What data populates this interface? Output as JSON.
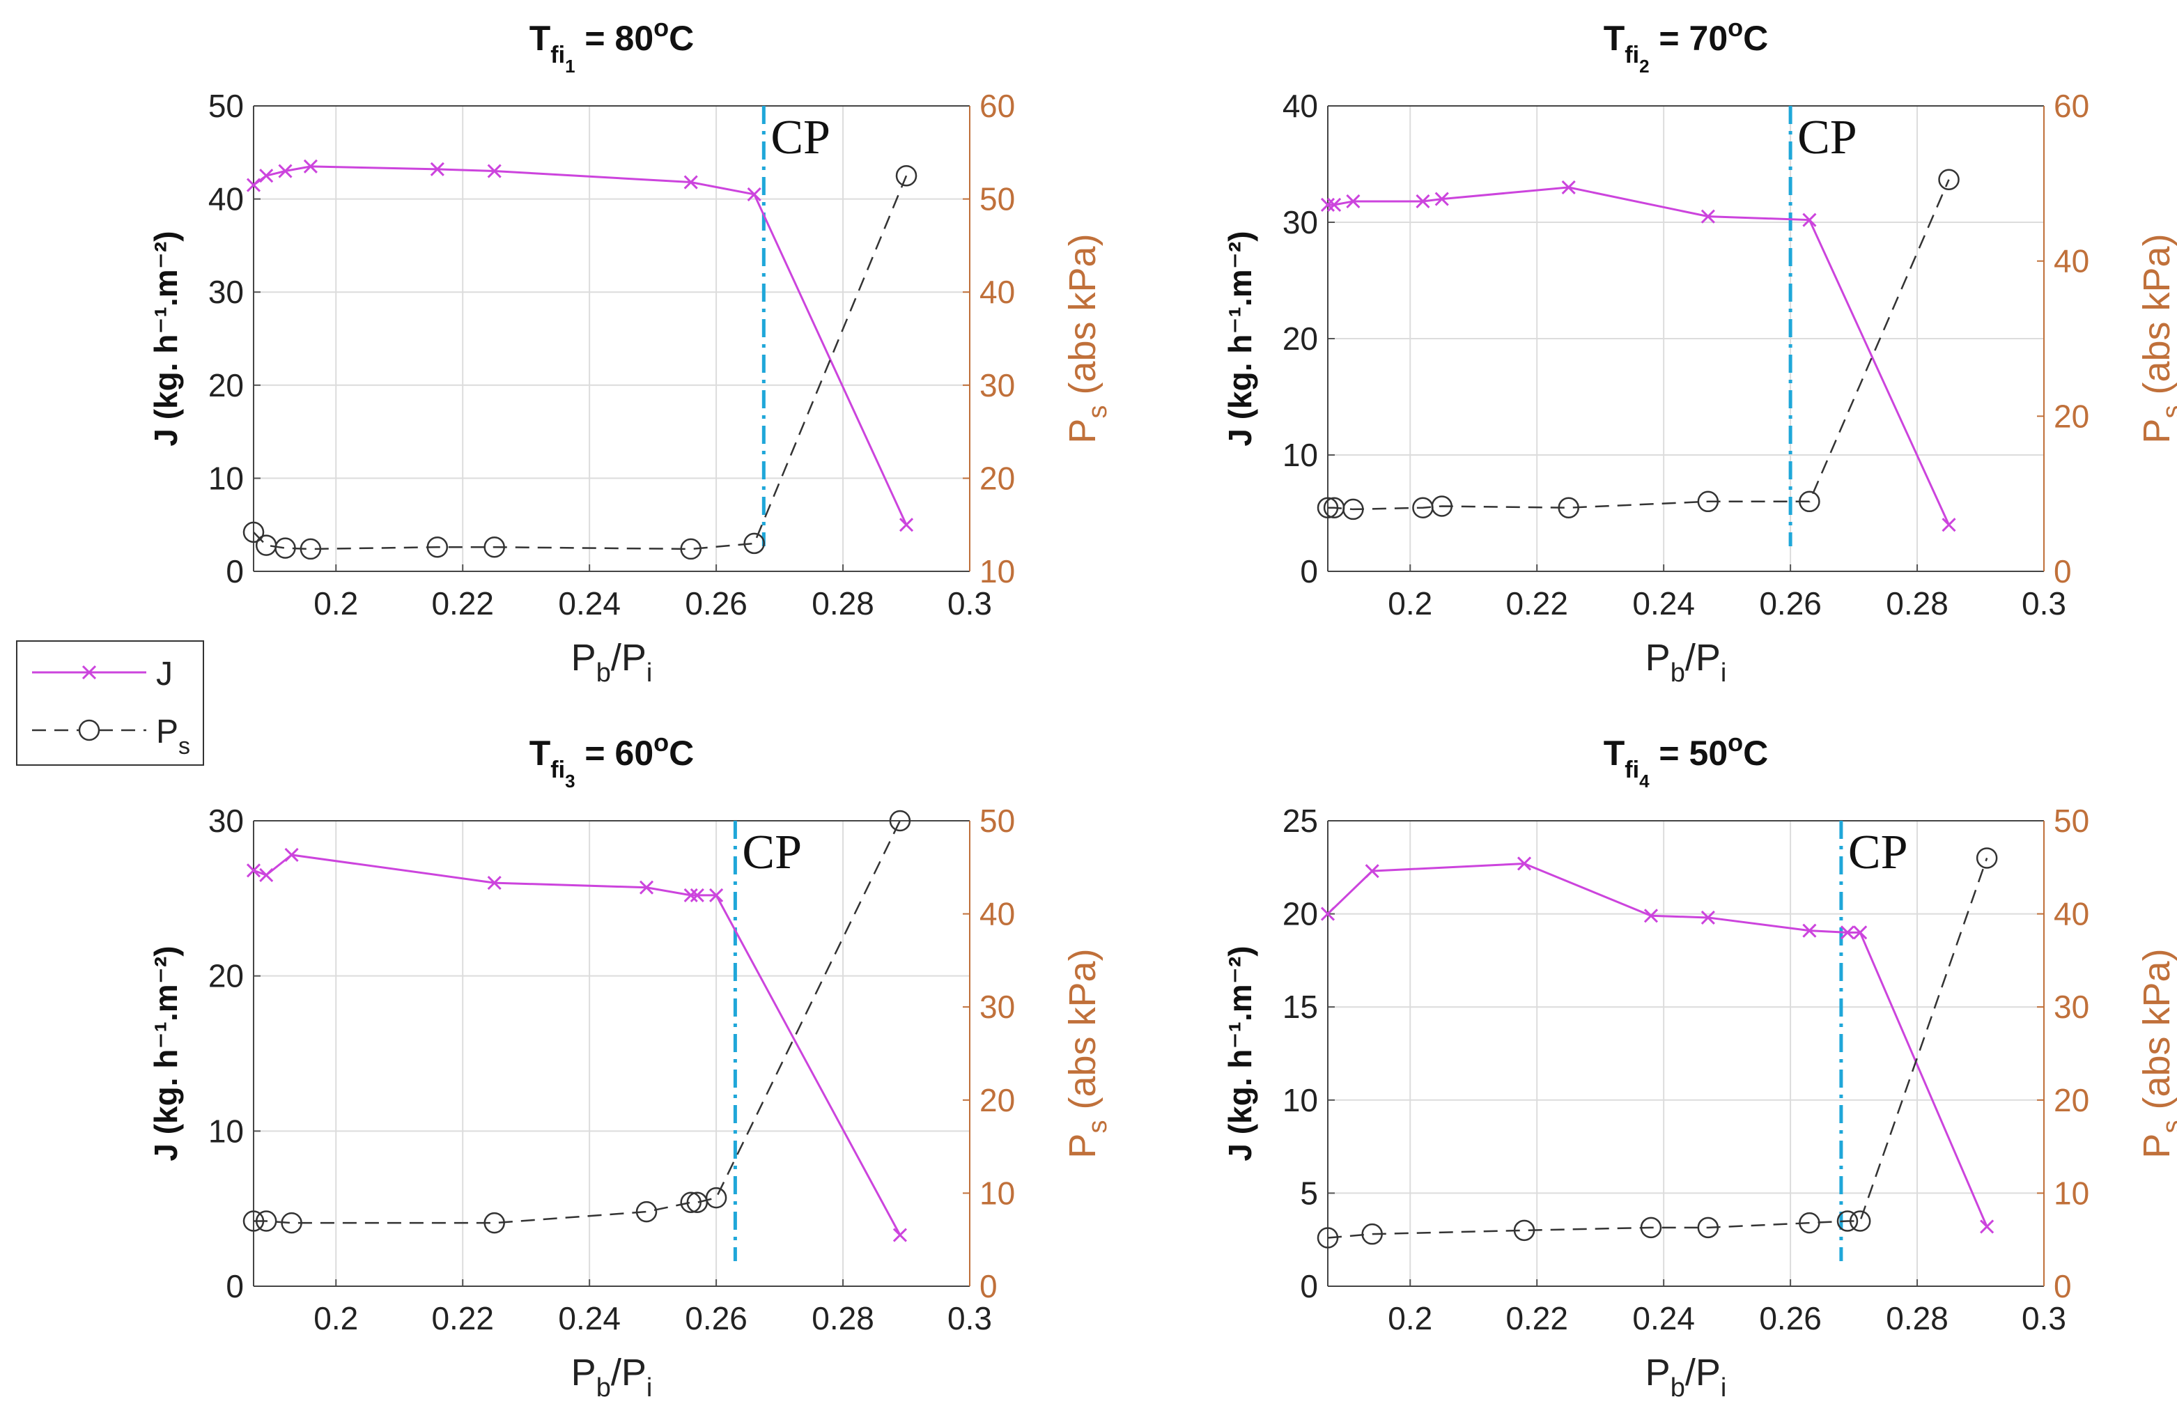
{
  "legend": {
    "items": [
      {
        "label": "J",
        "sub": "",
        "color": "#cc44dd"
      },
      {
        "label": "P",
        "sub": "s",
        "color": "#333333"
      }
    ]
  },
  "colors": {
    "j_series": "#cc44dd",
    "ps_series": "#333333",
    "cp_line": "#1fa7d9",
    "right_axis": "#c0703a",
    "grid": "#dcdcdc"
  },
  "chart_data": [
    {
      "type": "line",
      "title": {
        "prefix": "T",
        "sub": "fi",
        "subsub": "1",
        "value": " = 80",
        "sup": "o",
        "unit": "C"
      },
      "xlabel": {
        "main": "P",
        "sub1": "b",
        "sep": "/P",
        "sub2": "i"
      },
      "ylabel": "J (kg. h⁻¹.m⁻²)",
      "y2label": {
        "main": "P",
        "sub": "s",
        "rest": " (abs kPa)"
      },
      "xlim": [
        0.187,
        0.3
      ],
      "ylim": [
        0,
        50
      ],
      "y2lim": [
        10,
        60
      ],
      "xticks": [
        "0.2",
        "0.22",
        "0.24",
        "0.26",
        "0.28",
        "0.3"
      ],
      "xtick_values": [
        0.2,
        0.22,
        0.24,
        0.26,
        0.28,
        0.3
      ],
      "yticks": [
        "0",
        "10",
        "20",
        "30",
        "40",
        "50"
      ],
      "y2ticks": [
        "10",
        "20",
        "30",
        "40",
        "50",
        "60"
      ],
      "cp": {
        "x": 0.2675,
        "label": "CP"
      },
      "series": [
        {
          "name": "J",
          "axis": "left",
          "x": [
            0.187,
            0.189,
            0.192,
            0.196,
            0.216,
            0.225,
            0.256,
            0.266,
            0.29
          ],
          "values": [
            41.5,
            42.5,
            43,
            43.5,
            43.2,
            43,
            41.8,
            40.5,
            5
          ]
        },
        {
          "name": "Ps",
          "axis": "right",
          "x": [
            0.187,
            0.189,
            0.192,
            0.196,
            0.216,
            0.225,
            0.256,
            0.266,
            0.29
          ],
          "values": [
            14.2,
            12.8,
            12.5,
            12.4,
            12.6,
            12.6,
            12.4,
            13,
            52.5
          ]
        }
      ]
    },
    {
      "type": "line",
      "title": {
        "prefix": "T",
        "sub": "fi",
        "subsub": "2",
        "value": " = 70",
        "sup": "o",
        "unit": "C"
      },
      "xlabel": {
        "main": "P",
        "sub1": "b",
        "sep": "/P",
        "sub2": "i"
      },
      "ylabel": "J (kg. h⁻¹.m⁻²)",
      "y2label": {
        "main": "P",
        "sub": "s",
        "rest": " (abs kPa)"
      },
      "xlim": [
        0.187,
        0.3
      ],
      "ylim": [
        0,
        40
      ],
      "y2lim": [
        0,
        60
      ],
      "xticks": [
        "0.2",
        "0.22",
        "0.24",
        "0.26",
        "0.28",
        "0.3"
      ],
      "xtick_values": [
        0.2,
        0.22,
        0.24,
        0.26,
        0.28,
        0.3
      ],
      "yticks": [
        "0",
        "10",
        "20",
        "30",
        "40"
      ],
      "y2ticks": [
        "0",
        "20",
        "40",
        "60"
      ],
      "cp": {
        "x": 0.26,
        "label": "CP"
      },
      "series": [
        {
          "name": "J",
          "axis": "left",
          "x": [
            0.187,
            0.188,
            0.191,
            0.202,
            0.205,
            0.225,
            0.247,
            0.263,
            0.285
          ],
          "values": [
            31.5,
            31.5,
            31.8,
            31.8,
            32,
            33,
            30.5,
            30.2,
            4
          ]
        },
        {
          "name": "Ps",
          "axis": "right",
          "x": [
            0.187,
            0.188,
            0.191,
            0.202,
            0.205,
            0.225,
            0.247,
            0.263,
            0.285
          ],
          "values": [
            8.2,
            8.2,
            8,
            8.2,
            8.4,
            8.2,
            9,
            9,
            50.5
          ]
        }
      ]
    },
    {
      "type": "line",
      "title": {
        "prefix": "T",
        "sub": "fi",
        "subsub": "3",
        "value": " = 60",
        "sup": "o",
        "unit": "C"
      },
      "xlabel": {
        "main": "P",
        "sub1": "b",
        "sep": "/P",
        "sub2": "i"
      },
      "ylabel": "J (kg. h⁻¹.m⁻²)",
      "y2label": {
        "main": "P",
        "sub": "s",
        "rest": " (abs kPa)"
      },
      "xlim": [
        0.187,
        0.3
      ],
      "ylim": [
        0,
        30
      ],
      "y2lim": [
        0,
        50
      ],
      "xticks": [
        "0.2",
        "0.22",
        "0.24",
        "0.26",
        "0.28",
        "0.3"
      ],
      "xtick_values": [
        0.2,
        0.22,
        0.24,
        0.26,
        0.28,
        0.3
      ],
      "yticks": [
        "0",
        "10",
        "20",
        "30"
      ],
      "y2ticks": [
        "0",
        "10",
        "20",
        "30",
        "40",
        "50"
      ],
      "cp": {
        "x": 0.263,
        "label": "CP"
      },
      "series": [
        {
          "name": "J",
          "axis": "left",
          "x": [
            0.187,
            0.189,
            0.193,
            0.225,
            0.249,
            0.256,
            0.257,
            0.26,
            0.289
          ],
          "values": [
            26.8,
            26.5,
            27.8,
            26,
            25.7,
            25.2,
            25.2,
            25.2,
            3.3
          ]
        },
        {
          "name": "Ps",
          "axis": "right",
          "x": [
            0.187,
            0.189,
            0.193,
            0.225,
            0.249,
            0.256,
            0.257,
            0.26,
            0.289
          ],
          "values": [
            7,
            7,
            6.8,
            6.8,
            8,
            9,
            9,
            9.5,
            50
          ]
        }
      ]
    },
    {
      "type": "line",
      "title": {
        "prefix": "T",
        "sub": "fi",
        "subsub": "4",
        "value": " = 50",
        "sup": "o",
        "unit": "C"
      },
      "xlabel": {
        "main": "P",
        "sub1": "b",
        "sep": "/P",
        "sub2": "i"
      },
      "ylabel": "J (kg. h⁻¹.m⁻²)",
      "y2label": {
        "main": "P",
        "sub": "s",
        "rest": " (abs kPa)"
      },
      "xlim": [
        0.187,
        0.3
      ],
      "ylim": [
        0,
        25
      ],
      "y2lim": [
        0,
        50
      ],
      "xticks": [
        "0.2",
        "0.22",
        "0.24",
        "0.26",
        "0.28",
        "0.3"
      ],
      "xtick_values": [
        0.2,
        0.22,
        0.24,
        0.26,
        0.28,
        0.3
      ],
      "yticks": [
        "0",
        "5",
        "10",
        "15",
        "20",
        "25"
      ],
      "y2ticks": [
        "0",
        "10",
        "20",
        "30",
        "40",
        "50"
      ],
      "cp": {
        "x": 0.268,
        "label": "CP"
      },
      "series": [
        {
          "name": "J",
          "axis": "left",
          "x": [
            0.187,
            0.194,
            0.218,
            0.238,
            0.247,
            0.263,
            0.269,
            0.271,
            0.291
          ],
          "values": [
            20,
            22.3,
            22.7,
            19.9,
            19.8,
            19.1,
            19,
            19,
            3.2
          ]
        },
        {
          "name": "Ps",
          "axis": "right",
          "x": [
            0.187,
            0.194,
            0.218,
            0.238,
            0.247,
            0.263,
            0.269,
            0.271,
            0.291
          ],
          "values": [
            5.2,
            5.6,
            6,
            6.3,
            6.3,
            6.8,
            7,
            7,
            46
          ]
        }
      ]
    }
  ]
}
